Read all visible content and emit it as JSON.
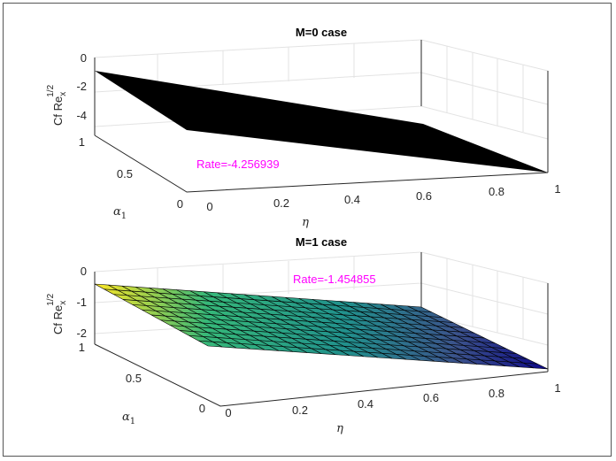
{
  "chart_data": [
    {
      "type": "surface",
      "title": "M=0 case",
      "xlabel": "η",
      "ylabel_base": "α",
      "ylabel_sub": "1",
      "zlabel_base": "Cf Re",
      "zlabel_sub": "x",
      "zlabel_sup": "1/2",
      "x_ticks": [
        "0",
        "0.2",
        "0.4",
        "0.6",
        "0.8",
        "1"
      ],
      "y_ticks": [
        "0",
        "0.5",
        "1"
      ],
      "z_ticks": [
        "0",
        "-2",
        "-4"
      ],
      "xlim": [
        0,
        1
      ],
      "ylim": [
        0,
        1
      ],
      "zlim": [
        -5,
        0
      ],
      "surface_color": "#000000",
      "rate_text": "Rate=-4.256939",
      "corners": [
        {
          "x": 0,
          "y": 0,
          "z": -0.9
        },
        {
          "x": 1,
          "y": 0,
          "z": -5.2
        },
        {
          "x": 1,
          "y": 1,
          "z": -5.2
        },
        {
          "x": 0,
          "y": 1,
          "z": -0.9
        }
      ]
    },
    {
      "type": "surface",
      "title": "M=1 case",
      "xlabel": "η",
      "ylabel_base": "α",
      "ylabel_sub": "1",
      "zlabel_base": "Cf Re",
      "zlabel_sub": "x",
      "zlabel_sup": "1/2",
      "x_ticks": [
        "0",
        "0.2",
        "0.4",
        "0.6",
        "0.8",
        "1"
      ],
      "y_ticks": [
        "0",
        "0.5",
        "1"
      ],
      "z_ticks": [
        "0",
        "-1",
        "-2"
      ],
      "xlim": [
        0,
        1
      ],
      "ylim": [
        0,
        1
      ],
      "zlim": [
        -2,
        0
      ],
      "colormap": [
        "#fde725",
        "#35b779",
        "#31688e",
        "#3b0f70",
        "#0d0887"
      ],
      "rate_text": "Rate=-1.454855",
      "corners": [
        {
          "x": 0,
          "y": 0,
          "z": -0.45
        },
        {
          "x": 1,
          "y": 0,
          "z": -2.05
        },
        {
          "x": 1,
          "y": 1,
          "z": -2.05
        },
        {
          "x": 0,
          "y": 1,
          "z": -0.45
        }
      ]
    }
  ]
}
